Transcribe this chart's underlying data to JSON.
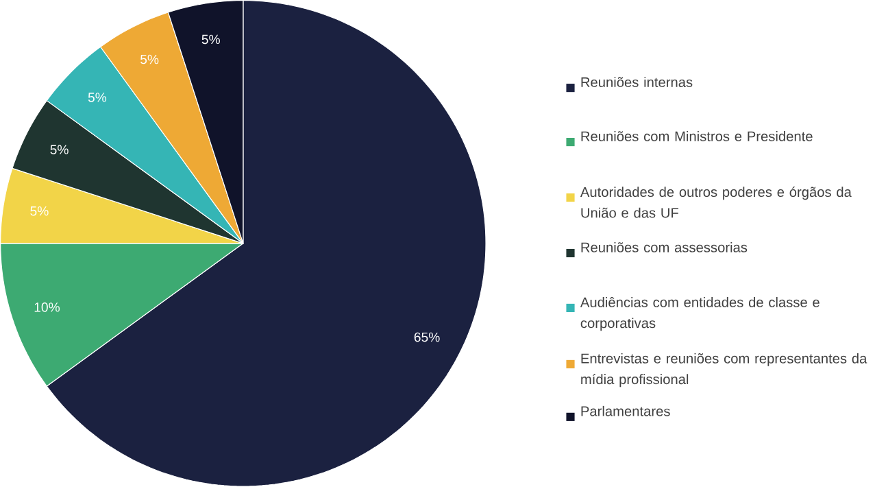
{
  "chart_data": {
    "type": "pie",
    "categories": [
      "Reuniões internas",
      "Reuniões com Ministros e Presidente",
      "Autoridades de outros poderes e órgãos da União e das UF",
      "Reuniões com assessorias",
      "Audiências com entidades de classe e corporativas",
      "Entrevistas e reuniões com representantes da mídia profissional",
      "Parlamentares"
    ],
    "values": [
      65,
      10,
      5,
      5,
      5,
      5,
      5
    ],
    "value_labels": [
      "65%",
      "10%",
      "5%",
      "5%",
      "5%",
      "5%",
      "5%"
    ],
    "colors": [
      "#1b2140",
      "#3daa72",
      "#f2d448",
      "#1f3530",
      "#35b5b5",
      "#eea935",
      "#10132a"
    ],
    "legend": "right"
  }
}
